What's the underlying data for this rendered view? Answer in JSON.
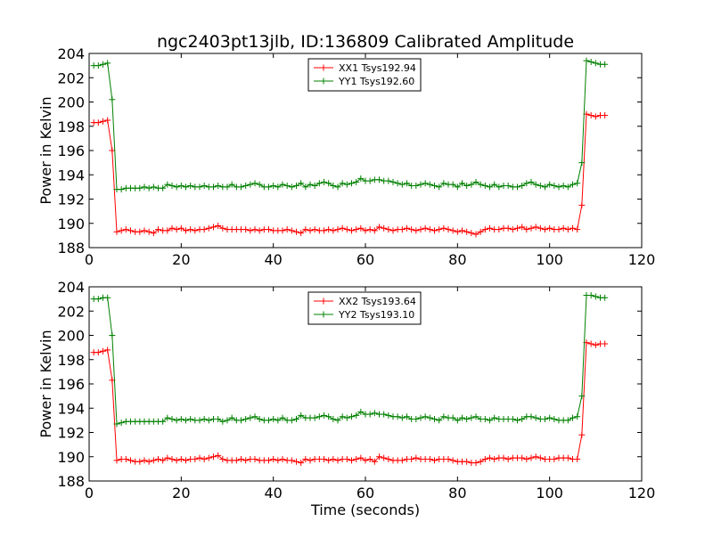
{
  "title": "ngc2403pt13jlb, ID:136809 Calibrated Amplitude",
  "chart_data": [
    {
      "type": "line",
      "title": "ngc2403pt13jlb, ID:136809 Calibrated Amplitude",
      "xlabel": "",
      "ylabel": "Power in Kelvin",
      "xlim": [
        0,
        120
      ],
      "ylim": [
        188,
        204
      ],
      "xticks": [
        "0",
        "20",
        "40",
        "60",
        "80",
        "100",
        "120"
      ],
      "yticks": [
        "188",
        "190",
        "192",
        "194",
        "196",
        "198",
        "200",
        "202",
        "204"
      ],
      "legend_position": "top-center",
      "grid": false,
      "x": [
        1,
        2,
        3,
        4,
        5,
        6,
        7,
        8,
        9,
        10,
        11,
        12,
        13,
        14,
        15,
        16,
        17,
        18,
        19,
        20,
        21,
        22,
        23,
        24,
        25,
        26,
        27,
        28,
        29,
        30,
        31,
        32,
        33,
        34,
        35,
        36,
        37,
        38,
        39,
        40,
        41,
        42,
        43,
        44,
        45,
        46,
        47,
        48,
        49,
        50,
        51,
        52,
        53,
        54,
        55,
        56,
        57,
        58,
        59,
        60,
        61,
        62,
        63,
        64,
        65,
        66,
        67,
        68,
        69,
        70,
        71,
        72,
        73,
        74,
        75,
        76,
        77,
        78,
        79,
        80,
        81,
        82,
        83,
        84,
        85,
        86,
        87,
        88,
        89,
        90,
        91,
        92,
        93,
        94,
        95,
        96,
        97,
        98,
        99,
        100,
        101,
        102,
        103,
        104,
        105,
        106,
        107,
        108,
        109,
        110,
        111,
        112
      ],
      "series": [
        {
          "name": "XX1 Tsys192.94",
          "color": "#ff0000",
          "values": [
            198.3,
            198.3,
            198.4,
            198.5,
            196.0,
            189.3,
            189.4,
            189.5,
            189.4,
            189.3,
            189.3,
            189.4,
            189.3,
            189.2,
            189.5,
            189.4,
            189.4,
            189.6,
            189.5,
            189.6,
            189.4,
            189.5,
            189.4,
            189.5,
            189.5,
            189.6,
            189.7,
            189.8,
            189.6,
            189.5,
            189.5,
            189.5,
            189.5,
            189.5,
            189.4,
            189.5,
            189.4,
            189.5,
            189.5,
            189.4,
            189.4,
            189.4,
            189.5,
            189.4,
            189.3,
            189.2,
            189.5,
            189.4,
            189.5,
            189.4,
            189.4,
            189.5,
            189.4,
            189.5,
            189.6,
            189.5,
            189.4,
            189.5,
            189.6,
            189.4,
            189.5,
            189.4,
            189.7,
            189.6,
            189.5,
            189.4,
            189.5,
            189.5,
            189.6,
            189.5,
            189.4,
            189.5,
            189.6,
            189.5,
            189.4,
            189.5,
            189.6,
            189.5,
            189.4,
            189.3,
            189.4,
            189.3,
            189.2,
            189.1,
            189.3,
            189.5,
            189.6,
            189.5,
            189.5,
            189.6,
            189.6,
            189.5,
            189.6,
            189.7,
            189.5,
            189.6,
            189.7,
            189.6,
            189.5,
            189.6,
            189.5,
            189.5,
            189.6,
            189.5,
            189.6,
            189.5,
            191.5,
            199.0,
            198.9,
            198.8,
            198.9,
            198.9
          ]
        },
        {
          "name": "YY1 Tsys192.60",
          "color": "#008000",
          "values": [
            203.0,
            203.0,
            203.1,
            203.2,
            200.2,
            192.8,
            192.8,
            192.9,
            192.9,
            192.9,
            192.9,
            193.0,
            192.9,
            193.0,
            192.9,
            192.9,
            193.2,
            193.1,
            193.0,
            193.1,
            193.0,
            193.1,
            193.0,
            193.0,
            193.1,
            193.0,
            193.0,
            193.1,
            193.0,
            193.0,
            193.2,
            193.0,
            193.0,
            193.1,
            193.2,
            193.3,
            193.2,
            193.0,
            193.0,
            193.1,
            193.0,
            193.2,
            193.1,
            193.0,
            193.1,
            193.3,
            193.0,
            193.2,
            193.1,
            193.3,
            193.4,
            193.3,
            193.1,
            193.0,
            193.3,
            193.2,
            193.3,
            193.4,
            193.7,
            193.5,
            193.5,
            193.6,
            193.6,
            193.5,
            193.5,
            193.4,
            193.3,
            193.2,
            193.3,
            193.1,
            193.1,
            193.2,
            193.3,
            193.2,
            193.1,
            193.0,
            193.3,
            193.2,
            193.2,
            193.0,
            193.3,
            193.1,
            193.2,
            193.4,
            193.2,
            193.1,
            193.0,
            193.2,
            193.0,
            193.1,
            193.1,
            193.0,
            193.0,
            193.1,
            193.3,
            193.4,
            193.2,
            193.1,
            193.0,
            193.2,
            193.1,
            193.0,
            193.1,
            193.0,
            193.2,
            193.3,
            195.0,
            203.4,
            203.3,
            203.2,
            203.1,
            203.1
          ]
        }
      ]
    },
    {
      "type": "line",
      "title": "",
      "xlabel": "Time (seconds)",
      "ylabel": "Power in Kelvin",
      "xlim": [
        0,
        120
      ],
      "ylim": [
        188,
        204
      ],
      "xticks": [
        "0",
        "20",
        "40",
        "60",
        "80",
        "100",
        "120"
      ],
      "yticks": [
        "188",
        "190",
        "192",
        "194",
        "196",
        "198",
        "200",
        "202",
        "204"
      ],
      "legend_position": "top-center",
      "grid": false,
      "x": [
        1,
        2,
        3,
        4,
        5,
        6,
        7,
        8,
        9,
        10,
        11,
        12,
        13,
        14,
        15,
        16,
        17,
        18,
        19,
        20,
        21,
        22,
        23,
        24,
        25,
        26,
        27,
        28,
        29,
        30,
        31,
        32,
        33,
        34,
        35,
        36,
        37,
        38,
        39,
        40,
        41,
        42,
        43,
        44,
        45,
        46,
        47,
        48,
        49,
        50,
        51,
        52,
        53,
        54,
        55,
        56,
        57,
        58,
        59,
        60,
        61,
        62,
        63,
        64,
        65,
        66,
        67,
        68,
        69,
        70,
        71,
        72,
        73,
        74,
        75,
        76,
        77,
        78,
        79,
        80,
        81,
        82,
        83,
        84,
        85,
        86,
        87,
        88,
        89,
        90,
        91,
        92,
        93,
        94,
        95,
        96,
        97,
        98,
        99,
        100,
        101,
        102,
        103,
        104,
        105,
        106,
        107,
        108,
        109,
        110,
        111,
        112
      ],
      "series": [
        {
          "name": "XX2 Tsys193.64",
          "color": "#ff0000",
          "values": [
            198.6,
            198.6,
            198.7,
            198.8,
            196.3,
            189.7,
            189.8,
            189.8,
            189.7,
            189.6,
            189.6,
            189.7,
            189.6,
            189.7,
            189.8,
            189.7,
            189.9,
            189.8,
            189.7,
            189.8,
            189.7,
            189.8,
            189.8,
            189.9,
            189.8,
            189.9,
            190.0,
            190.1,
            189.8,
            189.7,
            189.7,
            189.7,
            189.8,
            189.7,
            189.8,
            189.8,
            189.7,
            189.7,
            189.7,
            189.8,
            189.7,
            189.8,
            189.7,
            189.7,
            189.6,
            189.5,
            189.8,
            189.7,
            189.8,
            189.8,
            189.8,
            189.7,
            189.8,
            189.7,
            189.8,
            189.8,
            189.7,
            189.8,
            189.9,
            189.7,
            189.8,
            189.6,
            190.0,
            189.9,
            189.8,
            189.7,
            189.7,
            189.7,
            189.8,
            189.8,
            189.9,
            189.8,
            189.8,
            189.8,
            189.7,
            189.8,
            189.8,
            189.8,
            189.7,
            189.6,
            189.6,
            189.6,
            189.5,
            189.5,
            189.6,
            189.8,
            189.9,
            189.8,
            189.9,
            189.9,
            189.8,
            189.9,
            189.9,
            189.9,
            189.8,
            189.9,
            190.0,
            189.9,
            189.8,
            189.8,
            189.8,
            189.9,
            189.9,
            189.9,
            189.8,
            189.8,
            191.8,
            199.4,
            199.3,
            199.2,
            199.3,
            199.3
          ]
        },
        {
          "name": "YY2 Tsys193.10",
          "color": "#008000",
          "values": [
            203.0,
            203.0,
            203.1,
            203.1,
            200.0,
            192.7,
            192.8,
            192.9,
            192.9,
            192.9,
            192.9,
            192.9,
            192.9,
            192.9,
            192.9,
            192.9,
            193.2,
            193.1,
            193.0,
            193.1,
            193.0,
            193.1,
            193.0,
            193.0,
            193.1,
            193.0,
            193.1,
            193.1,
            192.9,
            193.0,
            193.2,
            193.0,
            193.0,
            193.1,
            193.2,
            193.3,
            193.1,
            193.0,
            193.0,
            193.1,
            193.0,
            193.2,
            193.0,
            193.0,
            193.1,
            193.4,
            193.2,
            193.2,
            193.2,
            193.3,
            193.4,
            193.3,
            193.1,
            193.0,
            193.3,
            193.2,
            193.3,
            193.4,
            193.7,
            193.5,
            193.5,
            193.6,
            193.5,
            193.5,
            193.4,
            193.3,
            193.3,
            193.2,
            193.3,
            193.1,
            193.1,
            193.2,
            193.3,
            193.2,
            193.1,
            193.0,
            193.3,
            193.2,
            193.2,
            193.0,
            193.2,
            193.1,
            193.2,
            193.3,
            193.1,
            193.1,
            193.0,
            193.2,
            193.1,
            193.1,
            193.1,
            193.1,
            193.0,
            193.1,
            193.3,
            193.3,
            193.2,
            193.1,
            193.1,
            193.2,
            193.1,
            193.0,
            193.0,
            193.0,
            193.2,
            193.3,
            195.0,
            203.3,
            203.3,
            203.2,
            203.1,
            203.1
          ]
        }
      ]
    }
  ]
}
